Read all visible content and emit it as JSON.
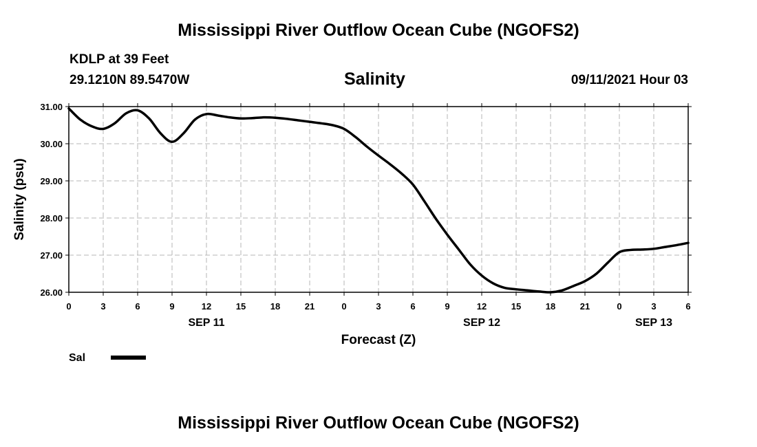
{
  "header": {
    "title": "Mississippi River Outflow Ocean Cube (NGOFS2)",
    "station": "KDLP at 39 Feet",
    "coordinates": "29.1210N  89.5470W",
    "variable": "Salinity",
    "run_time": "09/11/2021 Hour 03"
  },
  "footer": {
    "title": "Mississippi River Outflow Ocean Cube (NGOFS2)"
  },
  "chart_data": {
    "type": "line",
    "title": "Salinity",
    "xlabel": "Forecast (Z)",
    "ylabel": "Salinity (psu)",
    "ylim": [
      26,
      31
    ],
    "xlim": [
      0,
      54
    ],
    "grid": true,
    "y_ticks": [
      {
        "value": 26,
        "label": "26.00"
      },
      {
        "value": 27,
        "label": "27.00"
      },
      {
        "value": 28,
        "label": "28.00"
      },
      {
        "value": 29,
        "label": "29.00"
      },
      {
        "value": 30,
        "label": "30.00"
      },
      {
        "value": 31,
        "label": "31.00"
      }
    ],
    "x_ticks": [
      {
        "value": 0,
        "label": "0"
      },
      {
        "value": 3,
        "label": "3"
      },
      {
        "value": 6,
        "label": "6"
      },
      {
        "value": 9,
        "label": "9"
      },
      {
        "value": 12,
        "label": "12"
      },
      {
        "value": 15,
        "label": "15"
      },
      {
        "value": 18,
        "label": "18"
      },
      {
        "value": 21,
        "label": "21"
      },
      {
        "value": 24,
        "label": "0"
      },
      {
        "value": 27,
        "label": "3"
      },
      {
        "value": 30,
        "label": "6"
      },
      {
        "value": 33,
        "label": "9"
      },
      {
        "value": 36,
        "label": "12"
      },
      {
        "value": 39,
        "label": "15"
      },
      {
        "value": 42,
        "label": "18"
      },
      {
        "value": 45,
        "label": "21"
      },
      {
        "value": 48,
        "label": "0"
      },
      {
        "value": 51,
        "label": "3"
      },
      {
        "value": 54,
        "label": "6"
      }
    ],
    "date_labels": [
      {
        "value": 12,
        "label": "SEP 11"
      },
      {
        "value": 36,
        "label": "SEP 12"
      },
      {
        "value": 51,
        "label": "SEP 13"
      }
    ],
    "legend": {
      "position": "bottom-left",
      "entries": [
        {
          "name": "Sal",
          "color": "#000000"
        }
      ]
    },
    "series": [
      {
        "name": "Sal",
        "color": "#000000",
        "x": [
          0,
          1,
          2,
          3,
          4,
          5,
          6,
          7,
          8,
          9,
          10,
          11,
          12,
          13,
          14,
          15,
          16,
          17,
          18,
          19,
          20,
          21,
          22,
          23,
          24,
          25,
          26,
          27,
          28,
          29,
          30,
          31,
          32,
          33,
          34,
          35,
          36,
          37,
          38,
          39,
          40,
          41,
          42,
          43,
          44,
          45,
          46,
          47,
          48,
          49,
          50,
          51,
          52,
          53,
          54
        ],
        "values": [
          30.95,
          30.65,
          30.47,
          30.4,
          30.55,
          30.82,
          30.9,
          30.68,
          30.28,
          30.05,
          30.28,
          30.65,
          30.8,
          30.76,
          30.71,
          30.68,
          30.69,
          30.71,
          30.7,
          30.67,
          30.63,
          30.59,
          30.55,
          30.5,
          30.4,
          30.18,
          29.92,
          29.68,
          29.45,
          29.2,
          28.9,
          28.45,
          27.98,
          27.55,
          27.15,
          26.75,
          26.45,
          26.24,
          26.12,
          26.08,
          26.05,
          26.02,
          26.0,
          26.05,
          26.17,
          26.3,
          26.5,
          26.8,
          27.08,
          27.14,
          27.15,
          27.17,
          27.22,
          27.27,
          27.33
        ]
      }
    ]
  }
}
